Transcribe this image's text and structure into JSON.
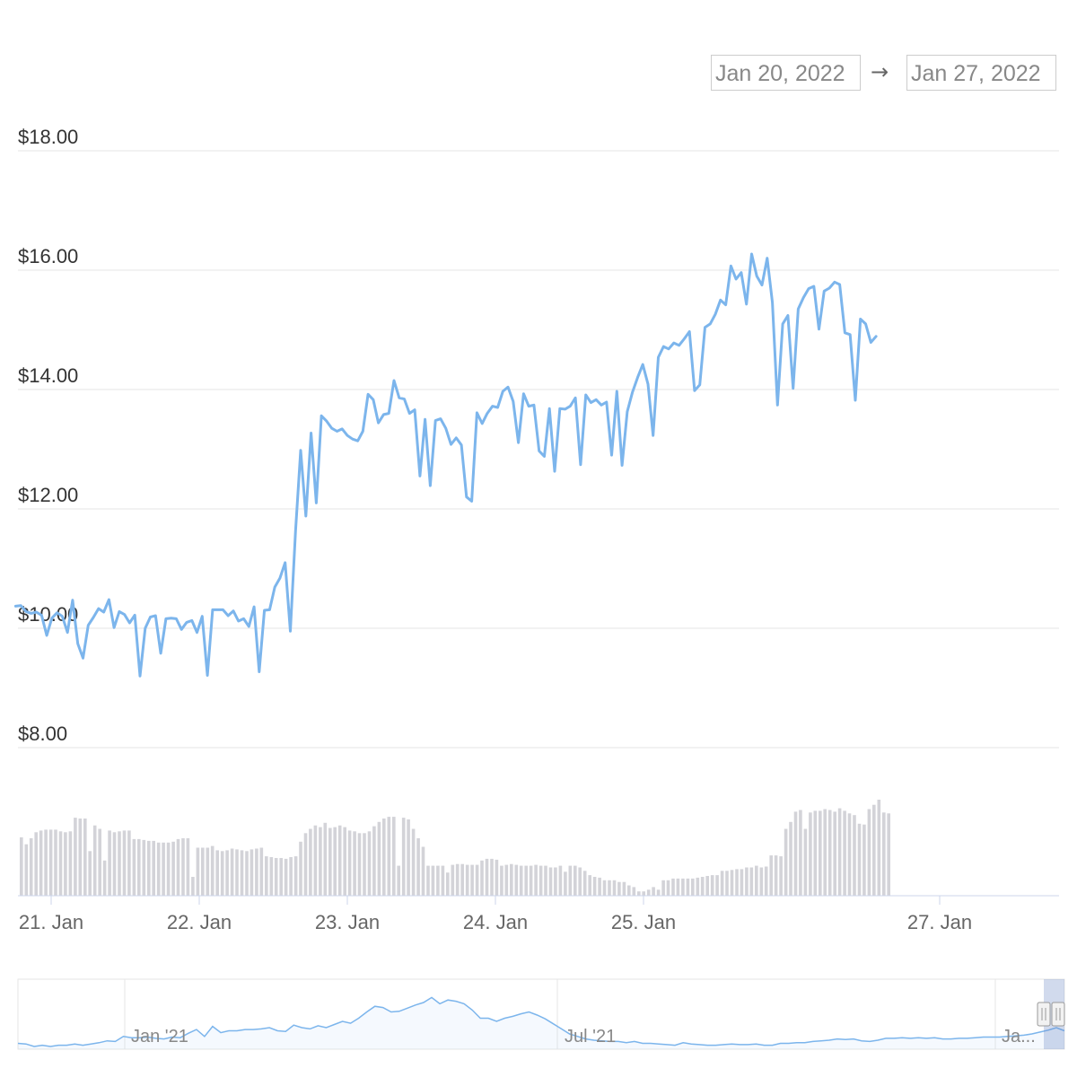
{
  "date_range": {
    "from": "Jan 20, 2022",
    "arrow": "→",
    "to": "Jan 27, 2022"
  },
  "chart_data": {
    "type": "line",
    "title": "",
    "xlabel": "",
    "ylabel": "",
    "ylim": [
      8,
      18
    ],
    "yticks": [
      "$8.00",
      "$10.00",
      "$12.00",
      "$14.00",
      "$16.00",
      "$18.00"
    ],
    "ytick_values": [
      8,
      10,
      12,
      14,
      16,
      18
    ],
    "xtick_labels": [
      "21. Jan",
      "22. Jan",
      "23. Jan",
      "24. Jan",
      "25. Jan",
      "27. Jan"
    ],
    "xtick_days": [
      0,
      1,
      2,
      3,
      4,
      6
    ],
    "grid": true,
    "line_color": "#7cb5ec",
    "volume_color": "#d3d3d8",
    "price_series": {
      "day_offset_start": -0.24,
      "day_offset_step": 0.035,
      "values": [
        10.37,
        10.38,
        10.28,
        10.25,
        10.27,
        10.22,
        9.88,
        10.17,
        10.26,
        10.2,
        9.93,
        10.47,
        9.74,
        9.5,
        10.05,
        10.18,
        10.33,
        10.27,
        10.48,
        10.01,
        10.28,
        10.23,
        10.09,
        10.22,
        9.2,
        10.0,
        10.19,
        10.21,
        9.58,
        10.16,
        10.17,
        10.16,
        9.98,
        10.1,
        10.13,
        9.93,
        10.2,
        9.21,
        10.31,
        10.31,
        10.31,
        10.21,
        10.29,
        10.12,
        10.16,
        10.03,
        10.36,
        9.27,
        10.3,
        10.31,
        10.69,
        10.84,
        11.1,
        9.95,
        11.63,
        12.98,
        11.88,
        13.27,
        12.1,
        13.56,
        13.47,
        13.35,
        13.3,
        13.34,
        13.23,
        13.17,
        13.14,
        13.3,
        13.92,
        13.83,
        13.44,
        13.58,
        13.6,
        14.15,
        13.86,
        13.84,
        13.6,
        13.66,
        12.55,
        13.5,
        12.39,
        13.48,
        13.51,
        13.35,
        13.08,
        13.19,
        13.07,
        12.2,
        12.13,
        13.61,
        13.43,
        13.6,
        13.72,
        13.7,
        13.97,
        14.04,
        13.8,
        13.11,
        13.93,
        13.72,
        13.74,
        12.97,
        12.88,
        13.68,
        12.63,
        13.68,
        13.67,
        13.72,
        13.86,
        12.74,
        13.91,
        13.78,
        13.83,
        13.74,
        13.79,
        12.9,
        13.97,
        12.73,
        13.63,
        13.95,
        14.2,
        14.42,
        14.09,
        13.23,
        14.54,
        14.72,
        14.68,
        14.78,
        14.74,
        14.85,
        14.97,
        13.98,
        14.08,
        15.04,
        15.1,
        15.26,
        15.5,
        15.42,
        16.07,
        15.85,
        15.96,
        15.43,
        16.27,
        15.9,
        15.75,
        16.2,
        15.46,
        13.74,
        15.1,
        15.24,
        14.02,
        15.35,
        15.54,
        15.69,
        15.73,
        15.01,
        15.65,
        15.7,
        15.8,
        15.76,
        14.95,
        14.92,
        13.82,
        15.18,
        15.1,
        14.79,
        14.89
      ]
    },
    "volume_series": {
      "values": [
        68,
        60,
        67,
        74,
        76,
        77,
        77,
        77,
        75,
        74,
        75,
        91,
        90,
        90,
        52,
        82,
        78,
        41,
        76,
        74,
        75,
        76,
        76,
        66,
        66,
        65,
        64,
        64,
        62,
        62,
        62,
        63,
        66,
        67,
        67,
        22,
        56,
        56,
        56,
        58,
        53,
        52,
        53,
        55,
        54,
        53,
        52,
        54,
        55,
        56,
        46,
        45,
        44,
        44,
        43,
        45,
        46,
        63,
        73,
        78,
        82,
        80,
        85,
        79,
        80,
        82,
        80,
        76,
        75,
        73,
        73,
        75,
        81,
        86,
        90,
        92,
        92,
        35,
        91,
        89,
        78,
        67,
        57,
        35,
        35,
        35,
        35,
        27,
        36,
        37,
        37,
        36,
        36,
        36,
        41,
        43,
        43,
        42,
        35,
        36,
        37,
        36,
        35,
        35,
        35,
        36,
        35,
        35,
        33,
        33,
        35,
        28,
        35,
        35,
        33,
        29,
        24,
        22,
        21,
        18,
        18,
        18,
        16,
        16,
        12,
        10,
        5,
        5,
        7,
        10,
        7,
        18,
        18,
        20,
        20,
        20,
        20,
        20,
        21,
        22,
        23,
        24,
        24,
        29,
        29,
        30,
        31,
        31,
        33,
        33,
        35,
        33,
        34,
        47,
        47,
        46,
        78,
        86,
        98,
        100,
        78,
        97,
        99,
        99,
        101,
        100,
        98,
        102,
        99,
        96,
        94,
        84,
        83,
        101,
        106,
        112,
        97,
        96
      ]
    }
  },
  "navigator": {
    "tick_labels": [
      "Jan '21",
      "Jul '21",
      "Ja..."
    ],
    "series": [
      5,
      4,
      0,
      2,
      0,
      2,
      2,
      4,
      2,
      4,
      6,
      9,
      8,
      16,
      14,
      14,
      15,
      13,
      12,
      15,
      14,
      21,
      27,
      16,
      32,
      22,
      25,
      25,
      27,
      27,
      28,
      30,
      25,
      24,
      34,
      30,
      28,
      33,
      30,
      35,
      40,
      37,
      45,
      55,
      64,
      62,
      55,
      56,
      61,
      66,
      70,
      78,
      68,
      74,
      72,
      68,
      58,
      45,
      45,
      40,
      45,
      48,
      52,
      55,
      50,
      44,
      36,
      28,
      20,
      16,
      12,
      10,
      9,
      8,
      8,
      6,
      8,
      5,
      5,
      4,
      3,
      2,
      6,
      4,
      3,
      2,
      2,
      3,
      4,
      3,
      3,
      4,
      2,
      2,
      5,
      5,
      6,
      6,
      8,
      9,
      10,
      12,
      11,
      12,
      9,
      8,
      10,
      13,
      13,
      14,
      13,
      14,
      13,
      14,
      12,
      12,
      13,
      13,
      14,
      15,
      15,
      15,
      16,
      17,
      18,
      20,
      23,
      26,
      30,
      25
    ]
  }
}
